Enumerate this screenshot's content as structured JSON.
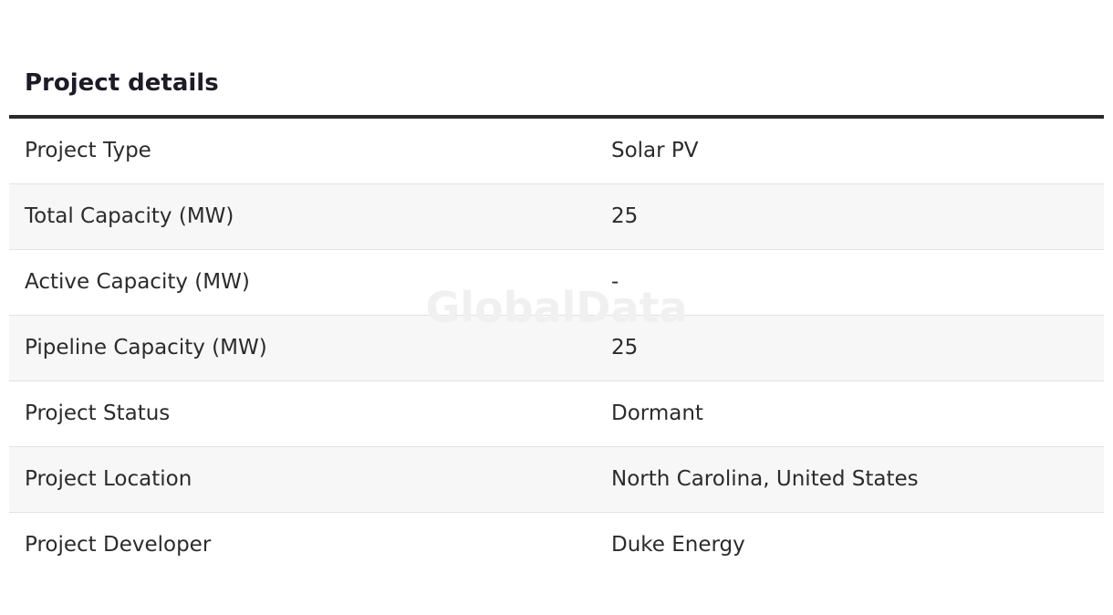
{
  "header": {
    "title": "Project details"
  },
  "watermark": "GlobalData",
  "table": {
    "rows": [
      [
        "Project Type",
        "Solar PV"
      ],
      [
        "Total Capacity (MW)",
        25
      ],
      [
        "Active Capacity (MW)",
        "-"
      ],
      [
        "Pipeline Capacity (MW)",
        25
      ],
      [
        "Project Status",
        "Dormant"
      ],
      [
        "Project Location",
        "North Carolina, United States"
      ],
      [
        "Project Developer",
        "Duke Energy"
      ]
    ]
  }
}
